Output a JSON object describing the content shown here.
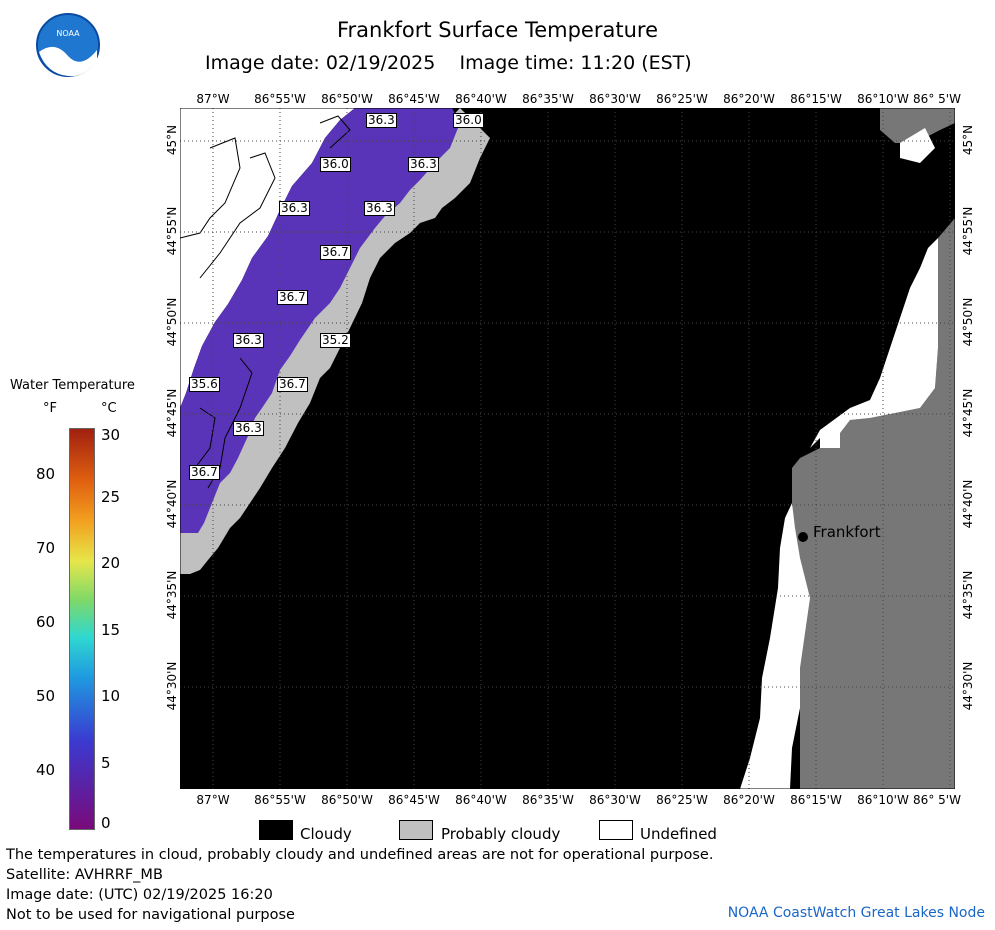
{
  "header": {
    "title": "Frankfort Surface Temperature",
    "subtitle": "Image date: 02/19/2025    Image time: 11:20 (EST)"
  },
  "axes": {
    "lon_ticks": [
      "87°W",
      "86°55'W",
      "86°50'W",
      "86°45'W",
      "86°40'W",
      "86°35'W",
      "86°30'W",
      "86°25'W",
      "86°20'W",
      "86°15'W",
      "86°10'W",
      "86° 5'W"
    ],
    "lat_ticks": [
      "45°N",
      "44°55'N",
      "44°50'N",
      "44°45'N",
      "44°40'N",
      "44°35'N",
      "44°30'N"
    ]
  },
  "map": {
    "place_label": "Frankfort",
    "temperature_labels": [
      "36.3",
      "36.0",
      "36.0",
      "36.3",
      "36.3",
      "36.3",
      "36.7",
      "36.7",
      "36.3",
      "35.2",
      "35.6",
      "36.7",
      "36.3",
      "36.7"
    ],
    "colors": {
      "cloudy": "#000000",
      "probably_cloudy": "#c0c0c0",
      "undefined": "#ffffff",
      "land": "#777777",
      "water": "#5a34b8"
    }
  },
  "colorbar": {
    "title": "Water Temperature",
    "unit_f": "°F",
    "unit_c": "°C",
    "f_ticks": [
      "80",
      "70",
      "60",
      "50",
      "40"
    ],
    "c_ticks": [
      "30",
      "25",
      "20",
      "15",
      "10",
      "5",
      "0"
    ]
  },
  "legend": {
    "cloudy": "Cloudy",
    "probably_cloudy": "Probably cloudy",
    "undefined": "Undefined"
  },
  "notes": {
    "line1": "The temperatures in cloud, probably cloudy and undefined areas are not for operational purpose.",
    "line2": "Satellite: AVHRRF_MB",
    "line3": "Image date: (UTC) 02/19/2025  16:20",
    "line4": "Not to be used for navigational purpose"
  },
  "credit": "NOAA CoastWatch Great Lakes Node",
  "logo_text": "NOAA"
}
